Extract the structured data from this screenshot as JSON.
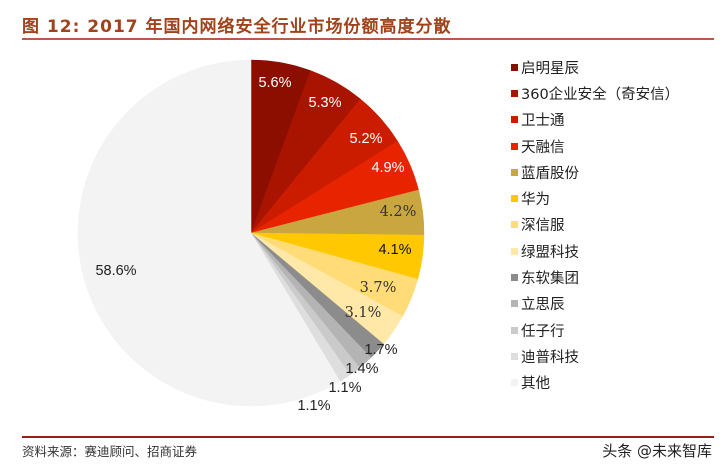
{
  "header": {
    "title": "图 12: 2017 年国内网络安全行业市场份额高度分散"
  },
  "footer": {
    "source": "资料来源：赛迪顾问、招商证券",
    "watermark": "头条 @未来智库"
  },
  "chart_data": {
    "type": "pie",
    "title": "2017 年国内网络安全行业市场份额高度分散",
    "start_angle": "12 o'clock, clockwise",
    "legend_position": "right",
    "categories": [
      "启明星辰",
      "360企业安全（奇安信）",
      "卫士通",
      "天融信",
      "蓝盾股份",
      "华为",
      "深信服",
      "绿盟科技",
      "东软集团",
      "立思辰",
      "任子行",
      "迪普科技",
      "其他"
    ],
    "values": [
      5.6,
      5.3,
      5.2,
      4.9,
      4.2,
      4.1,
      3.7,
      3.1,
      1.7,
      1.4,
      1.1,
      1.1,
      58.6
    ],
    "labels": [
      "5.6%",
      "5.3%",
      "5.2%",
      "4.9%",
      "4.2%",
      "4.1%",
      "3.7%",
      "3.1%",
      "1.7%",
      "1.4%",
      "1.1%",
      "1.1%",
      "58.6%"
    ],
    "colors": [
      "#8b0e00",
      "#a81400",
      "#cc1c00",
      "#e82300",
      "#c9a640",
      "#ffc800",
      "#ffdc78",
      "#ffe8a8",
      "#8c8c8c",
      "#b4b4b4",
      "#cacaca",
      "#dedede",
      "#f3f3f3"
    ],
    "label_colors": [
      "#ffffff",
      "#ffffff",
      "#ffffff",
      "#ffffff",
      "#333333",
      "#111111",
      "#333333",
      "#333333",
      "#222222",
      "#222222",
      "#222222",
      "#222222",
      "#222222"
    ],
    "label_positions": [
      [
        275,
        87
      ],
      [
        325,
        107
      ],
      [
        366,
        143
      ],
      [
        388,
        172
      ],
      [
        398,
        216
      ],
      [
        395,
        254
      ],
      [
        378,
        292
      ],
      [
        363,
        317
      ],
      [
        381,
        354
      ],
      [
        362,
        373
      ],
      [
        345,
        392
      ],
      [
        314,
        410
      ],
      [
        116,
        275
      ]
    ]
  }
}
